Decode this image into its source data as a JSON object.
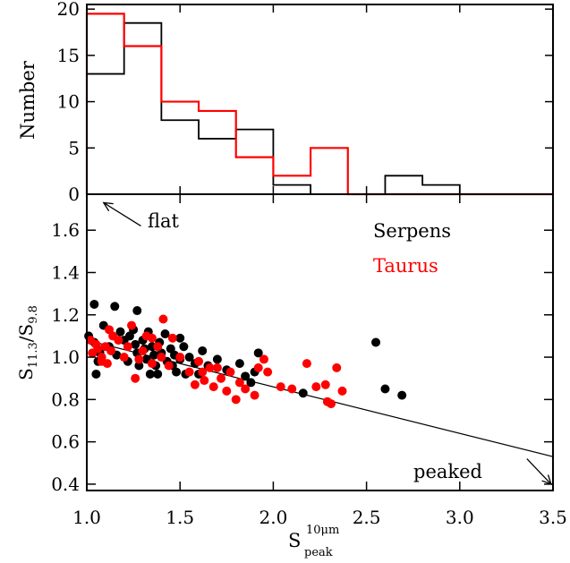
{
  "colors": {
    "serpens": "#000000",
    "taurus": "#ff0000",
    "axes": "#000000"
  },
  "chart_data": [
    {
      "type": "histogram",
      "panel": "top",
      "xlim": [
        1.0,
        3.5
      ],
      "ylim": [
        0,
        20.5
      ],
      "ylabel": "Number",
      "yticks": [
        0,
        5,
        10,
        15,
        20
      ],
      "yticklabels": [
        "0",
        "5",
        "10",
        "15",
        "20"
      ],
      "bin_edges": [
        1.0,
        1.2,
        1.4,
        1.6,
        1.8,
        2.0,
        2.2,
        2.4,
        2.6,
        2.8,
        3.0,
        3.2,
        3.4,
        3.5
      ],
      "series": [
        {
          "name": "Serpens",
          "counts": [
            13,
            18.5,
            8,
            6,
            7,
            1,
            0,
            0,
            2,
            1,
            0,
            0,
            0
          ]
        },
        {
          "name": "Taurus",
          "counts": [
            19.5,
            16,
            10,
            9,
            4,
            2,
            5,
            0,
            0,
            0,
            0,
            0,
            0
          ]
        }
      ]
    },
    {
      "type": "scatter",
      "panel": "bottom",
      "xlim": [
        1.0,
        3.5
      ],
      "ylim": [
        0.37,
        1.77
      ],
      "xlabel": "S",
      "xlabel_sup": "10μm",
      "xlabel_sub": "peak",
      "ylabel": "S",
      "ylabel_sub1": "11.3",
      "ylabel_mid": "/S",
      "ylabel_sub2": "9.8",
      "xticks": [
        1.0,
        1.5,
        2.0,
        2.5,
        3.0,
        3.5
      ],
      "xticklabels": [
        "1.0",
        "1.5",
        "2.0",
        "2.5",
        "3.0",
        "3.5"
      ],
      "yticks": [
        0.4,
        0.6,
        0.8,
        1.0,
        1.2,
        1.4,
        1.6
      ],
      "yticklabels": [
        "0.4",
        "0.6",
        "0.8",
        "1.0",
        "1.2",
        "1.4",
        "1.6"
      ],
      "legend": [
        {
          "name": "Serpens",
          "color": "#000000"
        },
        {
          "name": "Taurus",
          "color": "#ff0000"
        }
      ],
      "annotations": [
        {
          "text": "flat",
          "arrow_from": [
            1.29,
            1.62
          ],
          "arrow_to": [
            1.09,
            1.73
          ]
        },
        {
          "text": "peaked",
          "arrow_from": [
            3.36,
            0.52
          ],
          "arrow_to": [
            3.49,
            0.4
          ]
        }
      ],
      "trend_line": {
        "from": [
          1.0,
          1.08
        ],
        "to": [
          3.5,
          0.53
        ]
      },
      "series": [
        {
          "name": "Serpens",
          "points": [
            [
              1.04,
              1.25
            ],
            [
              1.15,
              1.24
            ],
            [
              1.01,
              1.1
            ],
            [
              1.04,
              1.07
            ],
            [
              1.07,
              1.02
            ],
            [
              1.06,
              0.98
            ],
            [
              1.09,
              1.15
            ],
            [
              1.05,
              0.92
            ],
            [
              1.12,
              1.05
            ],
            [
              1.16,
              1.01
            ],
            [
              1.18,
              1.12
            ],
            [
              1.2,
              1.08
            ],
            [
              1.22,
              0.98
            ],
            [
              1.23,
              1.1
            ],
            [
              1.25,
              1.13
            ],
            [
              1.26,
              1.06
            ],
            [
              1.27,
              1.02
            ],
            [
              1.28,
              0.96
            ],
            [
              1.3,
              1.08
            ],
            [
              1.31,
              1.04
            ],
            [
              1.32,
              0.99
            ],
            [
              1.33,
              1.12
            ],
            [
              1.34,
              0.92
            ],
            [
              1.35,
              1.05
            ],
            [
              1.36,
              1.01
            ],
            [
              1.37,
              0.96
            ],
            [
              1.38,
              0.92
            ],
            [
              1.39,
              1.07
            ],
            [
              1.4,
              1.02
            ],
            [
              1.42,
              1.11
            ],
            [
              1.43,
              0.98
            ],
            [
              1.45,
              1.04
            ],
            [
              1.46,
              0.96
            ],
            [
              1.47,
              1.01
            ],
            [
              1.48,
              0.93
            ],
            [
              1.5,
              0.99
            ],
            [
              1.52,
              1.05
            ],
            [
              1.53,
              0.92
            ],
            [
              1.55,
              1.0
            ],
            [
              1.58,
              0.97
            ],
            [
              1.6,
              0.92
            ],
            [
              1.62,
              1.03
            ],
            [
              1.65,
              0.96
            ],
            [
              1.7,
              0.99
            ],
            [
              1.75,
              0.94
            ],
            [
              1.82,
              0.97
            ],
            [
              1.85,
              0.91
            ],
            [
              1.88,
              0.88
            ],
            [
              1.9,
              0.93
            ],
            [
              1.92,
              1.02
            ],
            [
              2.16,
              0.83
            ],
            [
              2.55,
              1.07
            ],
            [
              2.6,
              0.85
            ],
            [
              2.69,
              0.82
            ],
            [
              1.5,
              1.09
            ],
            [
              1.27,
              1.22
            ]
          ]
        },
        {
          "name": "Taurus",
          "points": [
            [
              1.02,
              1.08
            ],
            [
              1.03,
              1.02
            ],
            [
              1.05,
              1.06
            ],
            [
              1.08,
              1.0
            ],
            [
              1.1,
              1.05
            ],
            [
              1.11,
              0.97
            ],
            [
              1.13,
              1.03
            ],
            [
              1.14,
              1.1
            ],
            [
              1.17,
              1.08
            ],
            [
              1.2,
              1.0
            ],
            [
              1.22,
              1.05
            ],
            [
              1.24,
              1.15
            ],
            [
              1.26,
              0.9
            ],
            [
              1.28,
              0.99
            ],
            [
              1.3,
              1.03
            ],
            [
              1.32,
              1.1
            ],
            [
              1.35,
              0.97
            ],
            [
              1.38,
              1.05
            ],
            [
              1.4,
              1.0
            ],
            [
              1.41,
              1.18
            ],
            [
              1.44,
              0.96
            ],
            [
              1.46,
              1.09
            ],
            [
              1.5,
              1.0
            ],
            [
              1.55,
              0.93
            ],
            [
              1.58,
              0.87
            ],
            [
              1.6,
              0.98
            ],
            [
              1.63,
              0.89
            ],
            [
              1.66,
              0.95
            ],
            [
              1.68,
              0.86
            ],
            [
              1.72,
              0.9
            ],
            [
              1.75,
              0.84
            ],
            [
              1.77,
              0.93
            ],
            [
              1.8,
              0.8
            ],
            [
              1.82,
              0.88
            ],
            [
              1.85,
              0.85
            ],
            [
              1.9,
              0.82
            ],
            [
              1.92,
              0.95
            ],
            [
              1.95,
              0.99
            ],
            [
              1.97,
              0.93
            ],
            [
              2.04,
              0.86
            ],
            [
              2.1,
              0.85
            ],
            [
              2.18,
              0.97
            ],
            [
              2.23,
              0.86
            ],
            [
              2.28,
              0.87
            ],
            [
              2.29,
              0.79
            ],
            [
              2.31,
              0.78
            ],
            [
              2.34,
              0.95
            ],
            [
              2.37,
              0.84
            ],
            [
              1.7,
              0.95
            ],
            [
              1.62,
              0.93
            ],
            [
              1.12,
              1.13
            ],
            [
              1.08,
              0.98
            ],
            [
              1.06,
              1.04
            ],
            [
              1.35,
              1.09
            ]
          ]
        }
      ]
    }
  ]
}
